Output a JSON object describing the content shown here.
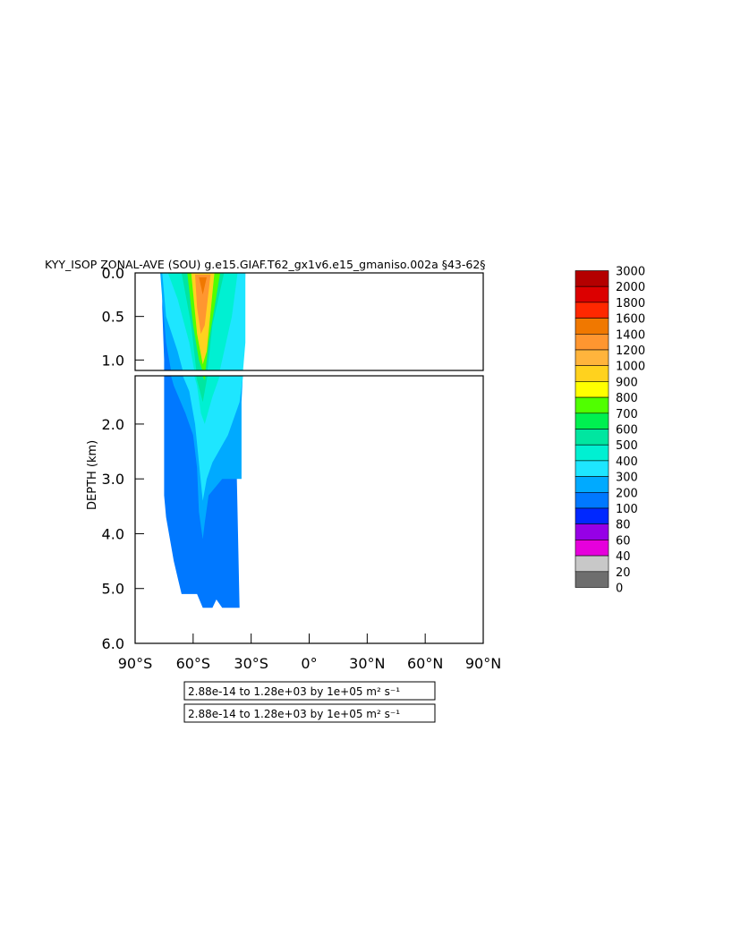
{
  "chart_data": {
    "type": "heatmap",
    "title": "KYY_ISOP ZONAL-AVE (SOU) g.e15.GIAF.T62_gx1v6.e15_gmaniso.002a §43-62§",
    "ylabel": "DEPTH (km)",
    "xlim": [
      -90,
      90
    ],
    "ylim": [
      0,
      6.0
    ],
    "x_ticks": [
      {
        "value": -90,
        "label": "90°S"
      },
      {
        "value": -60,
        "label": "60°S"
      },
      {
        "value": -30,
        "label": "30°S"
      },
      {
        "value": 0,
        "label": "0°"
      },
      {
        "value": 30,
        "label": "30°N"
      },
      {
        "value": 60,
        "label": "60°N"
      },
      {
        "value": 90,
        "label": "90°N"
      }
    ],
    "y_ticks_upper": [
      {
        "value": 0.0,
        "label": "0.0"
      },
      {
        "value": 0.5,
        "label": "0.5"
      },
      {
        "value": 1.0,
        "label": "1.0"
      }
    ],
    "y_ticks_lower": [
      {
        "value": 2.0,
        "label": "2.0"
      },
      {
        "value": 3.0,
        "label": "3.0"
      },
      {
        "value": 4.0,
        "label": "4.0"
      },
      {
        "value": 5.0,
        "label": "5.0"
      },
      {
        "value": 6.0,
        "label": "6.0"
      }
    ],
    "legend_position": "right",
    "colorbar": [
      {
        "value": "3000",
        "color": "#b40000"
      },
      {
        "value": "2000",
        "color": "#dc0000"
      },
      {
        "value": "1800",
        "color": "#ff2800"
      },
      {
        "value": "1600",
        "color": "#f07800"
      },
      {
        "value": "1400",
        "color": "#ff9630"
      },
      {
        "value": "1200",
        "color": "#ffb43c"
      },
      {
        "value": "1000",
        "color": "#ffd21e"
      },
      {
        "value": "900",
        "color": "#ffff00"
      },
      {
        "value": "800",
        "color": "#50ff00"
      },
      {
        "value": "700",
        "color": "#00f050"
      },
      {
        "value": "600",
        "color": "#00e6a0"
      },
      {
        "value": "500",
        "color": "#00f0d2"
      },
      {
        "value": "400",
        "color": "#1ee6ff"
      },
      {
        "value": "300",
        "color": "#00aaff"
      },
      {
        "value": "200",
        "color": "#0078ff"
      },
      {
        "value": "100",
        "color": "#0028ff"
      },
      {
        "value": "80",
        "color": "#9600e6"
      },
      {
        "value": "60",
        "color": "#e600dc"
      },
      {
        "value": "40",
        "color": "#c8c8c8"
      },
      {
        "value": "20",
        "color": "#6e6e6e"
      },
      {
        "value": "0",
        "color": ""
      }
    ],
    "range_labels": [
      "2.88e-14 to 1.28e+03 by 1e+05 m² s⁻¹",
      "2.88e-14 to 1.28e+03 by 1e+05 m² s⁻¹"
    ],
    "fields": [
      {
        "value": 200,
        "color": "#0078ff",
        "pts": [
          [
            -76,
            0
          ],
          [
            -34,
            0
          ],
          [
            -36,
            1.0
          ],
          [
            -38,
            2.0
          ],
          [
            -36,
            5.35
          ],
          [
            -45,
            5.35
          ],
          [
            -48,
            5.2
          ],
          [
            -50,
            5.35
          ],
          [
            -55,
            5.35
          ],
          [
            -58,
            5.1
          ],
          [
            -66,
            5.1
          ],
          [
            -68,
            4.8
          ],
          [
            -70,
            4.5
          ],
          [
            -72,
            4.1
          ],
          [
            -74,
            3.7
          ],
          [
            -75,
            3.3
          ],
          [
            -75,
            1.0
          ],
          [
            -76,
            0.4
          ]
        ]
      },
      {
        "value": 300,
        "color": "#00aaff",
        "pts": [
          [
            -77,
            0
          ],
          [
            -33,
            0
          ],
          [
            -34,
            0.9
          ],
          [
            -35,
            1.6
          ],
          [
            -35,
            3.0
          ],
          [
            -45,
            3.0
          ],
          [
            -52,
            3.3
          ],
          [
            -54,
            3.8
          ],
          [
            -55,
            4.1
          ],
          [
            -57,
            3.6
          ],
          [
            -58,
            2.8
          ],
          [
            -60,
            2.2
          ],
          [
            -64,
            1.8
          ],
          [
            -70,
            1.3
          ],
          [
            -74,
            0.8
          ],
          [
            -76,
            0.3
          ]
        ]
      },
      {
        "value": 400,
        "color": "#1ee6ff",
        "pts": [
          [
            -76,
            0
          ],
          [
            -33,
            0
          ],
          [
            -33,
            0.8
          ],
          [
            -36,
            1.6
          ],
          [
            -42,
            2.2
          ],
          [
            -50,
            2.7
          ],
          [
            -53,
            3.0
          ],
          [
            -55,
            3.4
          ],
          [
            -57,
            2.7
          ],
          [
            -59,
            2.0
          ],
          [
            -62,
            1.4
          ],
          [
            -68,
            0.9
          ],
          [
            -74,
            0.5
          ]
        ]
      },
      {
        "value": 500,
        "color": "#00f0d2",
        "pts": [
          [
            -73,
            0
          ],
          [
            -37,
            0
          ],
          [
            -40,
            0.5
          ],
          [
            -45,
            1.0
          ],
          [
            -50,
            1.5
          ],
          [
            -54,
            2.0
          ],
          [
            -56,
            1.8
          ],
          [
            -58,
            1.3
          ],
          [
            -62,
            0.8
          ],
          [
            -68,
            0.3
          ]
        ]
      },
      {
        "value": 600,
        "color": "#00e6a0",
        "pts": [
          [
            -66,
            0
          ],
          [
            -44,
            0
          ],
          [
            -50,
            0.6
          ],
          [
            -53,
            1.2
          ],
          [
            -55,
            1.6
          ],
          [
            -58,
            1.2
          ],
          [
            -61,
            0.6
          ]
        ]
      },
      {
        "value": 800,
        "color": "#50ff00",
        "pts": [
          [
            -63,
            0
          ],
          [
            -46,
            0
          ],
          [
            -52,
            0.8
          ],
          [
            -54,
            1.2
          ],
          [
            -57,
            1.0
          ],
          [
            -60,
            0.6
          ]
        ]
      },
      {
        "value": 1000,
        "color": "#ffd21e",
        "pts": [
          [
            -61,
            0
          ],
          [
            -49,
            0
          ],
          [
            -53,
            0.9
          ],
          [
            -55,
            1.05
          ],
          [
            -58,
            0.7
          ]
        ]
      },
      {
        "value": 1400,
        "color": "#ff9630",
        "pts": [
          [
            -59,
            0.02
          ],
          [
            -51,
            0.02
          ],
          [
            -54,
            0.6
          ],
          [
            -56,
            0.7
          ],
          [
            -58,
            0.4
          ]
        ]
      },
      {
        "value": 1600,
        "color": "#f07800",
        "pts": [
          [
            -57,
            0.05
          ],
          [
            -53,
            0.05
          ],
          [
            -55,
            0.25
          ]
        ]
      }
    ]
  }
}
